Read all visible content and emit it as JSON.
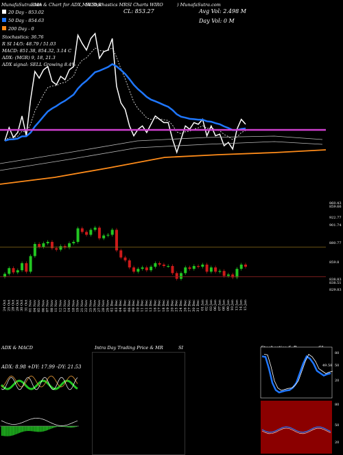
{
  "header": {
    "title_line": "SLStochastics MR",
    "line1_left": "MunafaSutra.com",
    "line1_mid": "EMA & Chart for ADX,MACD,R",
    "line1_right": "SI Charts WIRO",
    "line1_far": ") MunafaSutra.com",
    "close": "CL: 853.27",
    "avg_vol": "Avg Vol: 2.498   M",
    "day_vol": "Day Vol: 0   M"
  },
  "legend": [
    {
      "label": "20  Day - 853.02",
      "color": "#ffffff"
    },
    {
      "label": "50  Day - 854.63",
      "color": "#1f77ff"
    },
    {
      "label": "200  Day - 0",
      "color": "#ff8c1a"
    }
  ],
  "indicators": [
    "Stochastics: 36.76",
    "R                  SI 14/5: 48.79 / 51.03",
    "MACD: 851.38,  854.32,  3.14   C",
    "ADX:                       (MGR) 9, 18, 21.3",
    "ADX  signal: SELL Growing 8.4%"
  ],
  "price_labels": [
    "860.43",
    "859.66",
    "922.77",
    "901.74",
    "880.77",
    "859.8",
    "838.83",
    "838.51",
    "829.83"
  ],
  "dates": [
    "24 Oct",
    "25 Oct",
    "28 Oct",
    "29 Oct",
    "30 Oct",
    "31 Oct",
    "01 Nov",
    "04 Nov",
    "05 Nov",
    "06 Nov",
    "07 Nov",
    "08 Nov",
    "11 Nov",
    "12 Nov",
    "13 Nov",
    "14 Nov",
    "18 Nov",
    "19 Nov",
    "21 Nov",
    "22 Nov",
    "25 Nov",
    "26 Nov",
    "27 Nov",
    "28 Nov",
    "29 Nov",
    "02 Dec",
    "03 Dec",
    "04 Dec",
    "05 Dec",
    "06 Dec",
    "09 Dec",
    "10 Dec",
    "11 Dec",
    "12 Dec",
    "13 Dec",
    "16 Dec",
    "17 Dec",
    "18 Dec",
    "19 Dec",
    "20 Dec",
    "23 Dec",
    "24 Dec",
    "26 Dec",
    "27 Dec",
    "30 Dec",
    "31 Dec",
    "01 Jan",
    "02 Jan",
    "03 Jan",
    "06 Jan",
    "07 Jan",
    "08 Jan",
    "09 Jan",
    "10 Jan",
    "13 Jan",
    "14 Jan",
    "15 Jan"
  ],
  "panels": {
    "adx_title": "ADX  & MACD",
    "adx_values": "ADX: 8.98  +DY: 17.99  -DY: 21.53",
    "intraday_title": "Intra  Day Trading Price  & MR",
    "intraday_si": "SI",
    "stoch_title": "Stochastics & R",
    "stoch_si": "SI",
    "stoch_axis": [
      "80",
      "50",
      "20"
    ],
    "stoch_value": "49.58",
    "rsi_axis": [
      "80",
      "50",
      "20"
    ]
  },
  "colors": {
    "bg": "#000000",
    "up": "#22c622",
    "down": "#cc1a1a",
    "ema20": "#ffffff",
    "ema50": "#1f77ff",
    "ema200": "#ff8c1a",
    "pink_line": "#d040d0",
    "stoch_band": "#8b0000"
  },
  "chart_data": {
    "type": "candlestick",
    "ohlc_close": [
      843,
      851,
      845,
      848,
      858,
      846,
      868,
      885,
      881,
      886,
      888,
      879,
      877,
      882,
      880,
      886,
      888,
      907,
      902,
      898,
      905,
      908,
      893,
      897,
      898,
      905,
      876,
      866,
      862,
      852,
      846,
      850,
      852,
      848,
      853,
      858,
      856,
      854,
      854,
      844,
      836,
      844,
      852,
      850,
      854,
      853,
      856,
      846,
      852,
      846,
      847,
      840,
      842,
      838,
      850,
      856,
      853
    ],
    "ema20_close_line_y": "shown",
    "support_line": 880.77,
    "resistance_line": 838.83
  }
}
